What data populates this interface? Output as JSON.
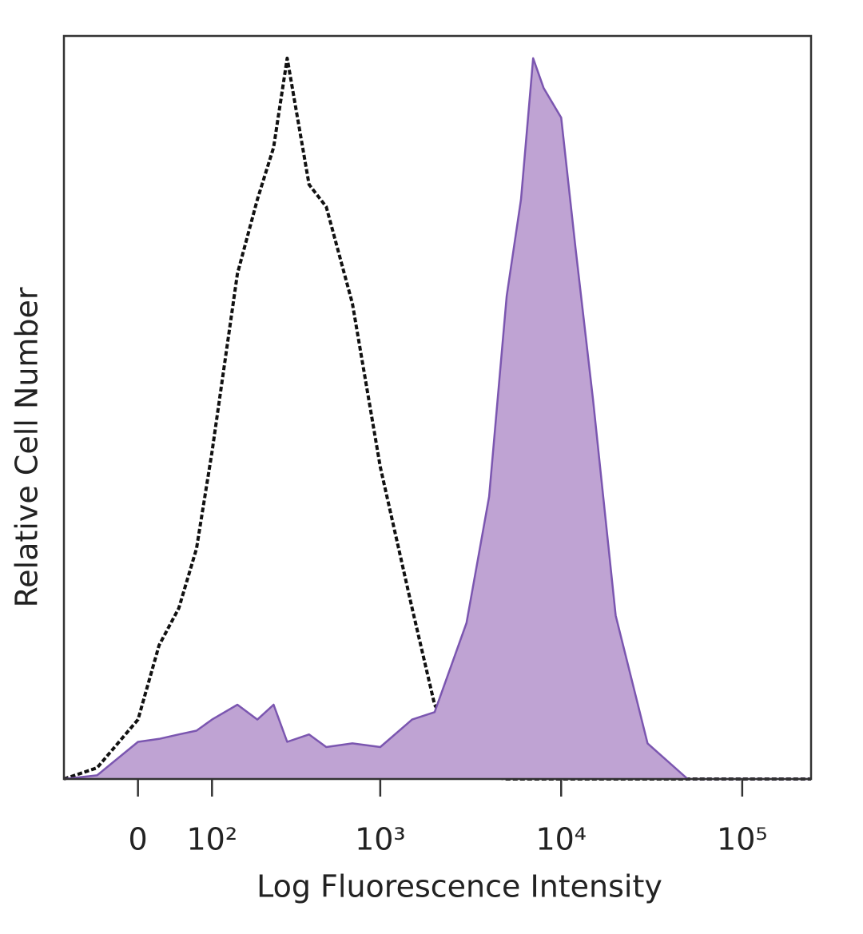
{
  "chart_data": {
    "type": "line",
    "xlabel": "Log Fluorescence Intensity",
    "ylabel": "Relative Cell Number",
    "xscale": "biexponential",
    "xlim": [
      -100,
      240000
    ],
    "ylim": [
      0,
      100
    ],
    "xticks": [
      0,
      {
        "value": 100,
        "label": "10²"
      },
      {
        "value": 1000,
        "label": "10³"
      },
      {
        "value": 10000,
        "label": "10⁴"
      },
      {
        "value": 100000,
        "label": "10⁵"
      }
    ],
    "x": [
      -100,
      -50,
      0,
      25,
      50,
      75,
      100,
      150,
      200,
      250,
      300,
      400,
      500,
      700,
      1000,
      1500,
      2000,
      3000,
      4000,
      5000,
      6000,
      7000,
      8000,
      10000,
      12000,
      15000,
      20000,
      30000,
      50000,
      100000,
      240000
    ],
    "series": [
      {
        "color": "#111111",
        "dashed": true,
        "filled": false,
        "values": [
          0,
          1.5,
          8,
          18,
          23,
          31,
          44,
          68,
          78,
          85,
          97,
          80,
          77,
          64,
          42,
          23,
          10,
          3,
          0.3,
          0,
          0,
          0,
          0,
          0,
          0,
          0,
          0,
          0,
          0,
          0,
          0
        ]
      },
      {
        "color": "#7b56b0",
        "fill": "#bfa3d3",
        "dashed": false,
        "filled": true,
        "values": [
          0,
          0.5,
          5,
          5.4,
          6,
          6.5,
          8,
          10,
          8,
          10,
          5,
          6,
          4.3,
          4.8,
          4.3,
          8,
          9,
          21,
          38,
          65,
          78,
          97,
          93,
          89,
          71.5,
          51,
          22,
          4.8,
          0,
          0,
          0
        ]
      }
    ]
  }
}
